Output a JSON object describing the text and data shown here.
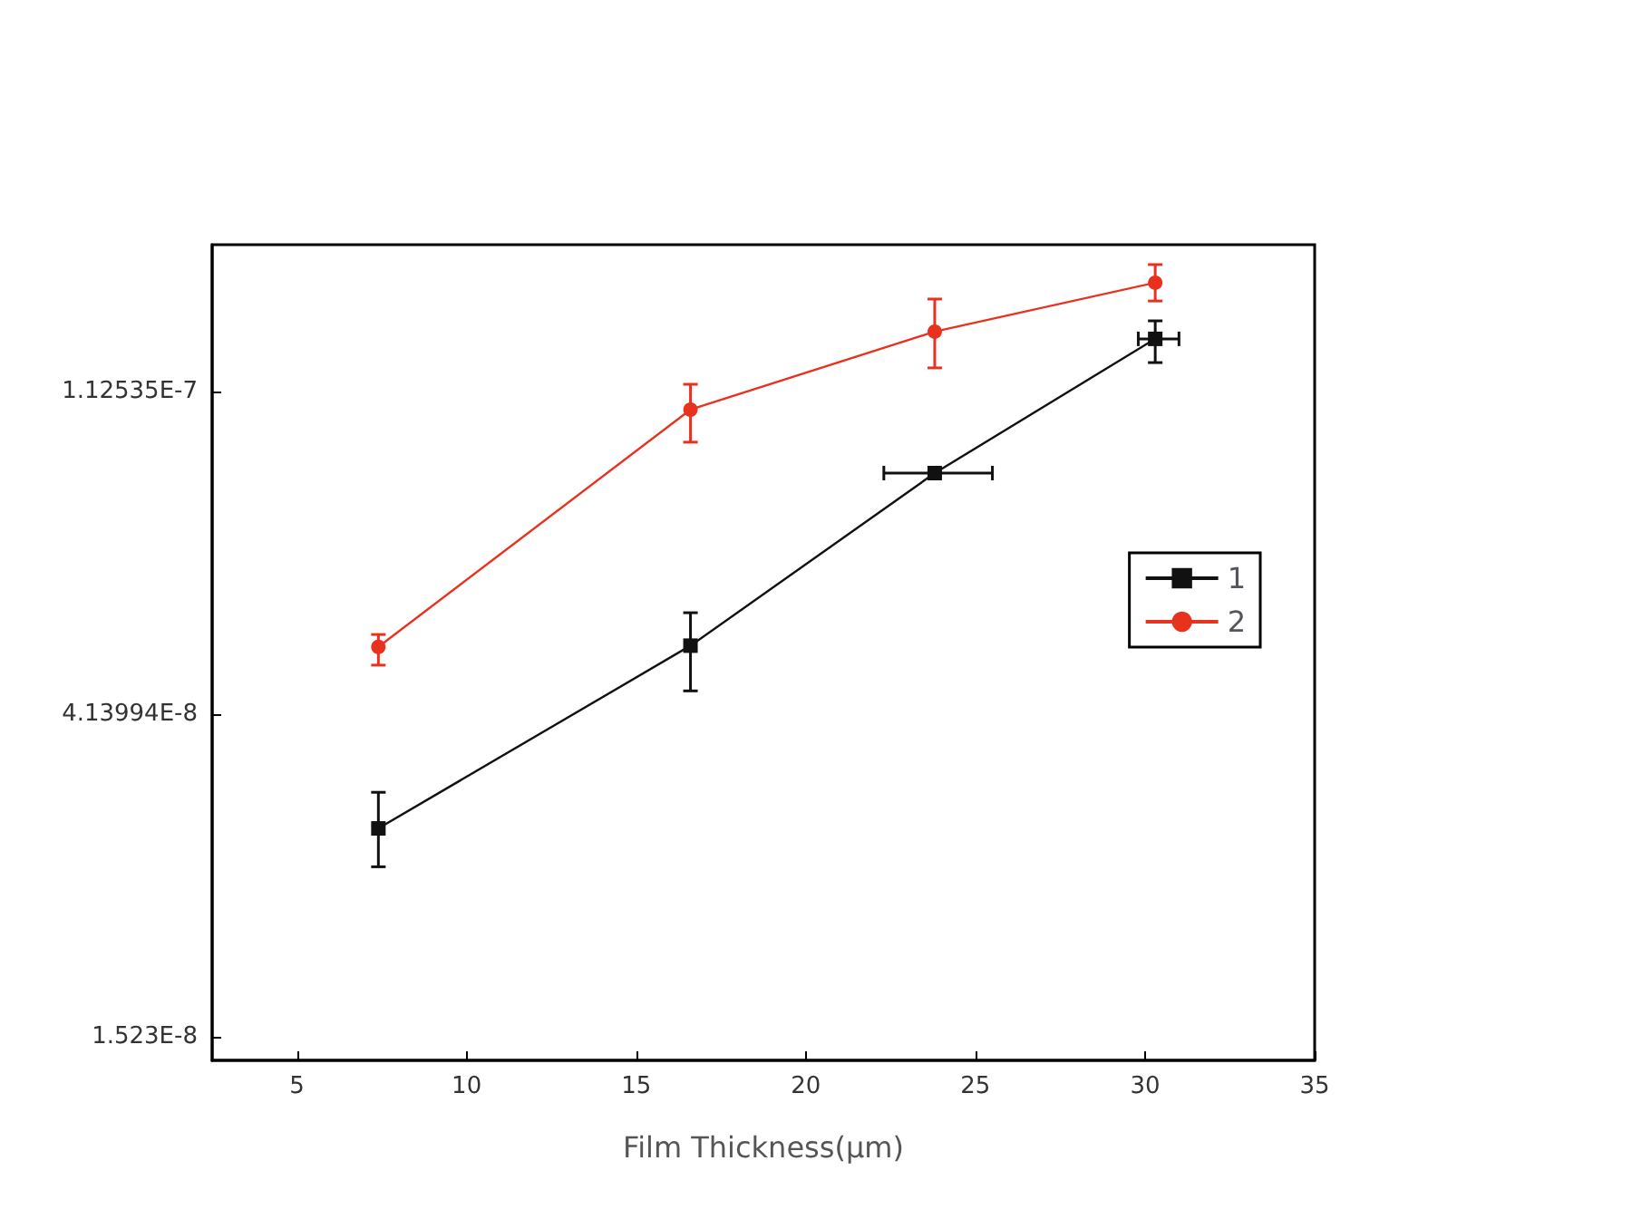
{
  "chart_data": {
    "type": "line",
    "xlabel": "Film Thickness(μm)",
    "xlim": [
      2.5,
      35
    ],
    "xticks": [
      5,
      10,
      15,
      20,
      25,
      30,
      35
    ],
    "ylim": [
      1.416e-08,
      1.774e-07
    ],
    "yticks": [
      {
        "value": 1.523e-08,
        "label": "1.523E-8"
      },
      {
        "value": 4.13994e-08,
        "label": "4.13994E-8"
      },
      {
        "value": 1.12535e-07,
        "label": "1.12535E-7"
      }
    ],
    "log": "y",
    "grid": false,
    "legend": "right",
    "series": [
      {
        "name": "1",
        "color": "#111111",
        "marker": "square",
        "x": [
          7.4,
          16.6,
          23.8,
          30.3
        ],
        "values": [
          2.906e-08,
          5.12e-08,
          8.74e-08,
          1.325e-07
        ],
        "errors": [
          [
            2.58e-08,
            3.25e-08
          ],
          [
            4.45e-08,
            5.67e-08
          ],
          null,
          [
            1.231e-07,
            1.401e-07
          ]
        ],
        "xerrors": [
          null,
          null,
          [
            22.3,
            25.5
          ],
          [
            29.8,
            31.0
          ]
        ]
      },
      {
        "name": "2",
        "color": "#e8321e",
        "marker": "circle",
        "x": [
          7.4,
          16.6,
          23.8,
          30.3
        ],
        "values": [
          5.1e-08,
          1.064e-07,
          1.355e-07,
          1.577e-07
        ],
        "errors": [
          [
            4.82e-08,
            5.3e-08
          ],
          [
            9.62e-08,
            1.151e-07
          ],
          [
            1.211e-07,
            1.499e-07
          ],
          [
            1.49e-07,
            1.668e-07
          ]
        ]
      }
    ]
  }
}
